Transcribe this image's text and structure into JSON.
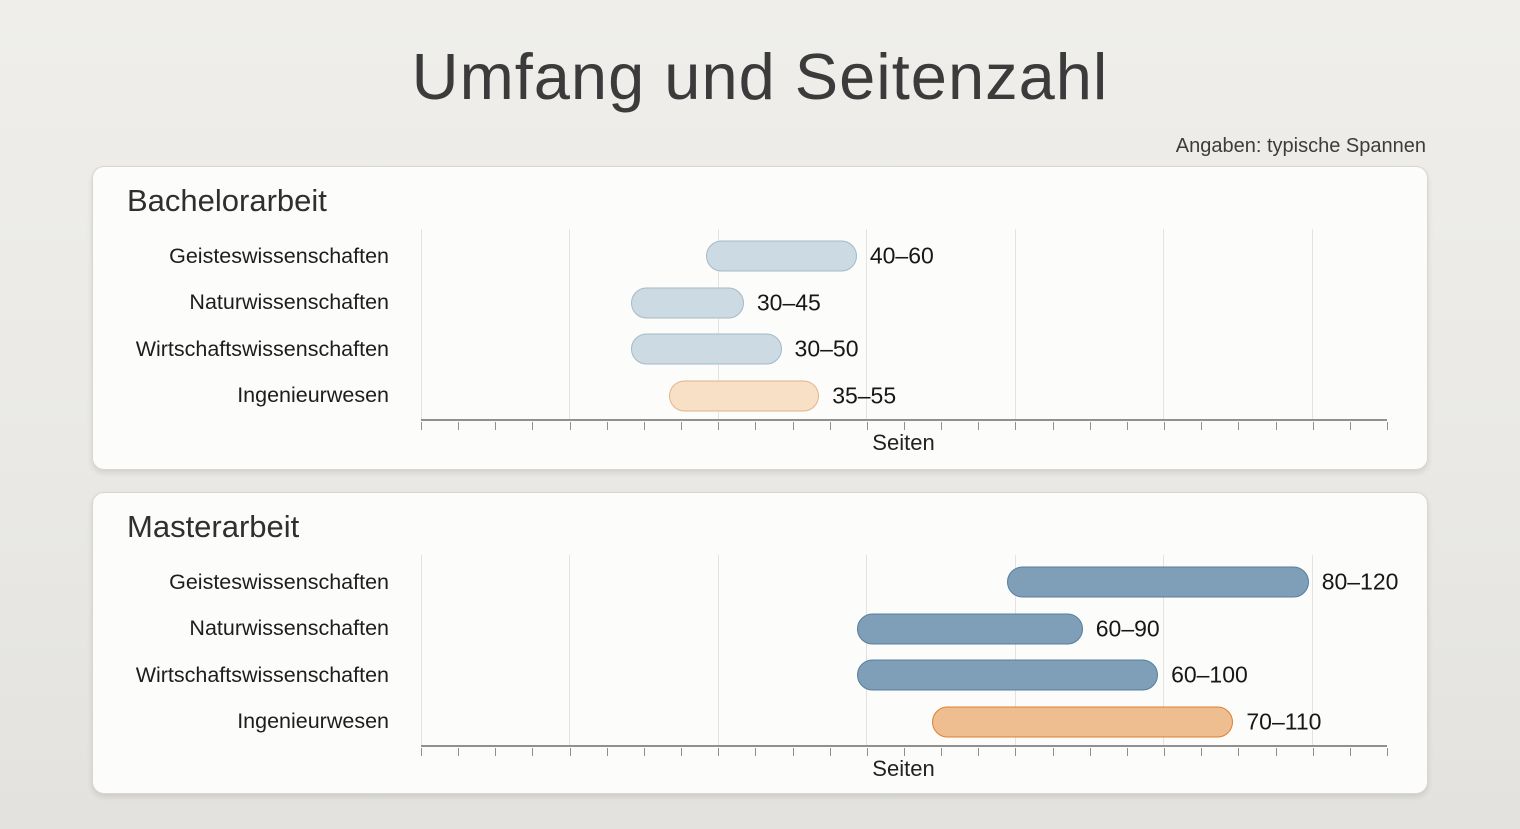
{
  "page": {
    "title": "Umfang und Seitenzahl",
    "subtitle": "Angaben: typische Spannen",
    "background_color": "#eae9e5",
    "card_color": "#fcfcfb"
  },
  "axis": {
    "xlim": [
      0,
      130
    ],
    "grid_step": 20,
    "tick_step": 5,
    "numeric_tick_labels_shown": false,
    "gridline_color": "#e4e3e0",
    "axis_color": "#90908e"
  },
  "chart_data": [
    {
      "type": "bar",
      "orientation": "horizontal-range",
      "title": "Bachelorarbeit",
      "xlabel": "Seiten",
      "xlim": [
        0,
        130
      ],
      "categories": [
        "Geisteswissenschaften",
        "Naturwissenschaften",
        "Wirtschaftswissenschaften",
        "Ingenieurwesen"
      ],
      "bars": [
        {
          "category": "Geisteswissenschaften",
          "min": 40,
          "max": 60,
          "label": "40–60",
          "fill": "#ccdae4",
          "stroke": "#a3b9c7"
        },
        {
          "category": "Naturwissenschaften",
          "min": 30,
          "max": 45,
          "label": "30–45",
          "fill": "#ccdae4",
          "stroke": "#a3b9c7"
        },
        {
          "category": "Wirtschaftswissenschaften",
          "min": 30,
          "max": 50,
          "label": "30–50",
          "fill": "#ccdae4",
          "stroke": "#a3b9c7"
        },
        {
          "category": "Ingenieurwesen",
          "min": 35,
          "max": 55,
          "label": "35–55",
          "fill": "#f7e0c5",
          "stroke": "#e2b58a"
        }
      ]
    },
    {
      "type": "bar",
      "orientation": "horizontal-range",
      "title": "Masterarbeit",
      "xlabel": "Seiten",
      "xlim": [
        0,
        130
      ],
      "categories": [
        "Geisteswissenschaften",
        "Naturwissenschaften",
        "Wirtschaftswissenschaften",
        "Ingenieurwesen"
      ],
      "bars": [
        {
          "category": "Geisteswissenschaften",
          "min": 80,
          "max": 120,
          "label": "80–120",
          "fill": "#7f9eb7",
          "stroke": "#587e9c"
        },
        {
          "category": "Naturwissenschaften",
          "min": 60,
          "max": 90,
          "label": "60–90",
          "fill": "#7f9eb7",
          "stroke": "#587e9c"
        },
        {
          "category": "Wirtschaftswissenschaften",
          "min": 60,
          "max": 100,
          "label": "60–100",
          "fill": "#7f9eb7",
          "stroke": "#587e9c"
        },
        {
          "category": "Ingenieurwesen",
          "min": 70,
          "max": 110,
          "label": "70–110",
          "fill": "#eebd90",
          "stroke": "#dd8030"
        }
      ]
    }
  ]
}
